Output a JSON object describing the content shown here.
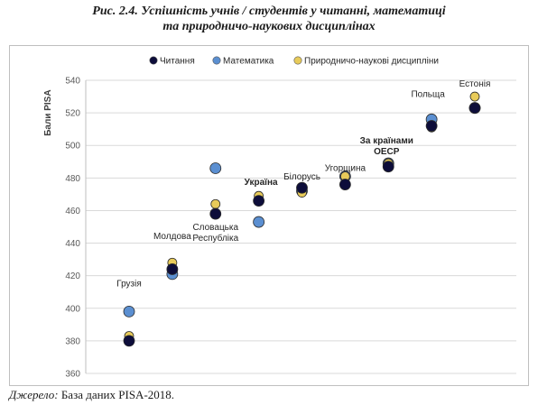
{
  "figure": {
    "title_line1": "Рис. 2.4. Успішність учнів / студентів у читанні, математиці",
    "title_line2": "та природничо-наукових дисциплінах",
    "source_label": "Джерело:",
    "source_text": " База даних PISA-2018."
  },
  "colors": {
    "reading": "#0d0d3a",
    "math": "#5b8fd1",
    "science": "#e8cb5a",
    "grid": "#d9d9d9",
    "axis": "#bfbfbf"
  },
  "chart_data": {
    "type": "scatter",
    "title": "",
    "xlabel": "",
    "ylabel": "Бали PISA",
    "ylim": [
      360,
      540
    ],
    "yticks": [
      360,
      380,
      400,
      420,
      440,
      460,
      480,
      500,
      520,
      540
    ],
    "grid": "horizontal",
    "legend_position": "top-center",
    "categories": [
      "Грузія",
      "Молдова",
      "Словацька Республіка",
      "Україна",
      "Білорусь",
      "Угорщина",
      "За країнами ОЕСР",
      "Польща",
      "Естонія"
    ],
    "point_labels": [
      {
        "lines": [
          "Грузія"
        ],
        "bold": false
      },
      {
        "lines": [
          "Молдова"
        ],
        "bold": false
      },
      {
        "lines": [
          "Словацька",
          "Республіка"
        ],
        "bold": false
      },
      {
        "lines": [
          "Україна"
        ],
        "bold": true
      },
      {
        "lines": [
          "Білорусь"
        ],
        "bold": false
      },
      {
        "lines": [
          "Угорщина"
        ],
        "bold": false
      },
      {
        "lines": [
          "За країнами",
          "ОЕСР"
        ],
        "bold": true
      },
      {
        "lines": [
          "Польща"
        ],
        "bold": false
      },
      {
        "lines": [
          "Естонія"
        ],
        "bold": false
      }
    ],
    "series": [
      {
        "name": "Читання",
        "color": "#0d0d3a",
        "values": [
          380,
          424,
          458,
          466,
          474,
          476,
          487,
          512,
          523
        ]
      },
      {
        "name": "Математика",
        "color": "#5b8fd1",
        "values": [
          398,
          421,
          486,
          453,
          472,
          481,
          489,
          516,
          523
        ]
      },
      {
        "name": "Природничо-наукові дисципліни",
        "color": "#e8cb5a",
        "values": [
          383,
          428,
          464,
          469,
          471,
          481,
          489,
          511,
          530
        ]
      }
    ]
  }
}
